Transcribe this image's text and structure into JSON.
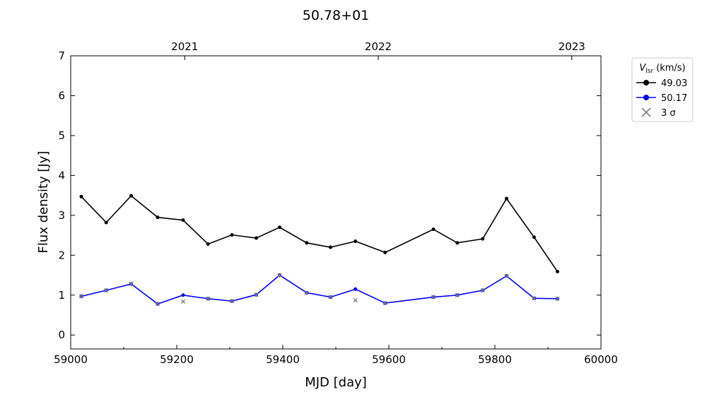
{
  "chart_data": {
    "type": "line",
    "title": "50.78+01",
    "xlabel": "MJD [day]",
    "ylabel": "Flux density [Jy]",
    "xlim": [
      59000,
      60000
    ],
    "ylim": [
      -0.35,
      7
    ],
    "x_ticks": [
      59000,
      59200,
      59400,
      59600,
      59800,
      60000
    ],
    "y_ticks": [
      0,
      1,
      2,
      3,
      4,
      5,
      6,
      7
    ],
    "top_axis": {
      "ticks": [
        {
          "mjd": 59215,
          "label": "2021"
        },
        {
          "mjd": 59580,
          "label": "2022"
        },
        {
          "mjd": 59945,
          "label": "2023"
        }
      ]
    },
    "legend": {
      "title_symbol": "V",
      "title_subscript": "lsr",
      "title_unit": "(km/s)",
      "placement": "outside upper right"
    },
    "series": [
      {
        "name": "49.03",
        "color": "#000000",
        "x": [
          59020,
          59067,
          59114,
          59164,
          59212,
          59259,
          59304,
          59350,
          59394,
          59445,
          59490,
          59537,
          59593,
          59684,
          59729,
          59777,
          59822,
          59874,
          59918
        ],
        "y": [
          3.47,
          2.82,
          3.49,
          2.95,
          2.88,
          2.28,
          2.51,
          2.43,
          2.7,
          2.31,
          2.2,
          2.35,
          2.07,
          2.65,
          2.31,
          2.41,
          3.42,
          2.45,
          1.59
        ]
      },
      {
        "name": "50.17",
        "color": "#0000ff",
        "x": [
          59020,
          59067,
          59114,
          59164,
          59212,
          59259,
          59304,
          59350,
          59394,
          59445,
          59490,
          59537,
          59593,
          59684,
          59729,
          59777,
          59822,
          59874,
          59918
        ],
        "y": [
          0.97,
          1.12,
          1.28,
          0.78,
          1.0,
          0.91,
          0.85,
          1.01,
          1.5,
          1.06,
          0.95,
          1.15,
          0.8,
          0.95,
          1.0,
          1.12,
          1.48,
          0.92,
          0.91
        ]
      }
    ],
    "sigma3": {
      "name": "3 σ",
      "color": "#808080",
      "x": [
        59020,
        59067,
        59114,
        59164,
        59212,
        59259,
        59304,
        59350,
        59394,
        59445,
        59490,
        59537,
        59593,
        59684,
        59729,
        59777,
        59822,
        59874,
        59918
      ],
      "y": [
        0.97,
        1.12,
        1.28,
        0.78,
        0.84,
        0.91,
        0.85,
        1.01,
        1.5,
        1.06,
        0.95,
        0.87,
        0.8,
        0.95,
        1.0,
        1.12,
        1.48,
        0.92,
        0.91
      ]
    }
  }
}
